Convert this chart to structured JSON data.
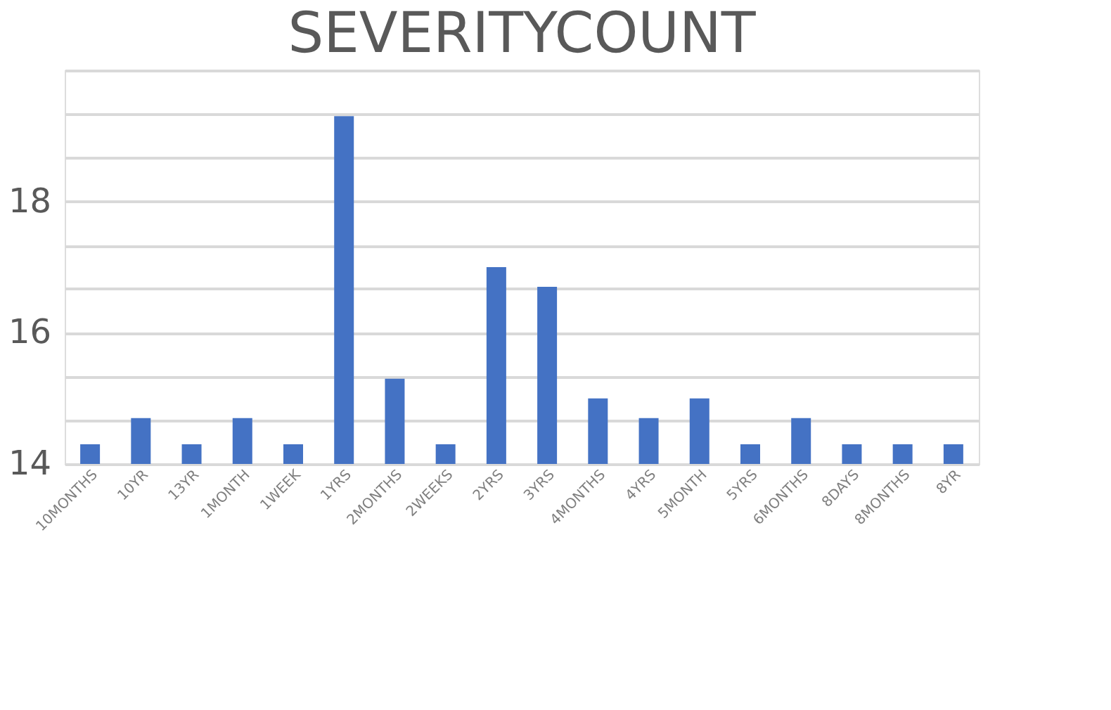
{
  "chart_data": {
    "type": "bar",
    "title": "SEVERITYCOUNT",
    "categories": [
      "10MONTHS",
      "10YR",
      "13YR",
      "1MONTH",
      "1WEEK",
      "1YRS",
      "2MONTHS",
      "2WEEKS",
      "2YRS",
      "3YRS",
      "4MONTHS",
      "4YRS",
      "5MONTH",
      "5YRS",
      "6MONTHS",
      "8DAYS",
      "8MONTHS",
      "8YR"
    ],
    "values": [
      14.3,
      14.7,
      14.3,
      14.7,
      14.3,
      19.3,
      15.3,
      14.3,
      17,
      16.7,
      15,
      14.7,
      15,
      14.3,
      14.7,
      14.3,
      14.3,
      14.3
    ],
    "color": "#4472c4",
    "ylim": [
      14,
      20
    ],
    "yticks": [
      14,
      {
        "value": 14.67,
        "label": null
      },
      {
        "value": 15.33,
        "label": null
      },
      16,
      {
        "value": 16.67,
        "label": null
      },
      {
        "value": 17.33,
        "label": null
      },
      18,
      {
        "value": 18.67,
        "label": null
      },
      {
        "value": 19.33,
        "label": null
      },
      {
        "value": 20,
        "label": null
      }
    ],
    "grid": "y"
  }
}
